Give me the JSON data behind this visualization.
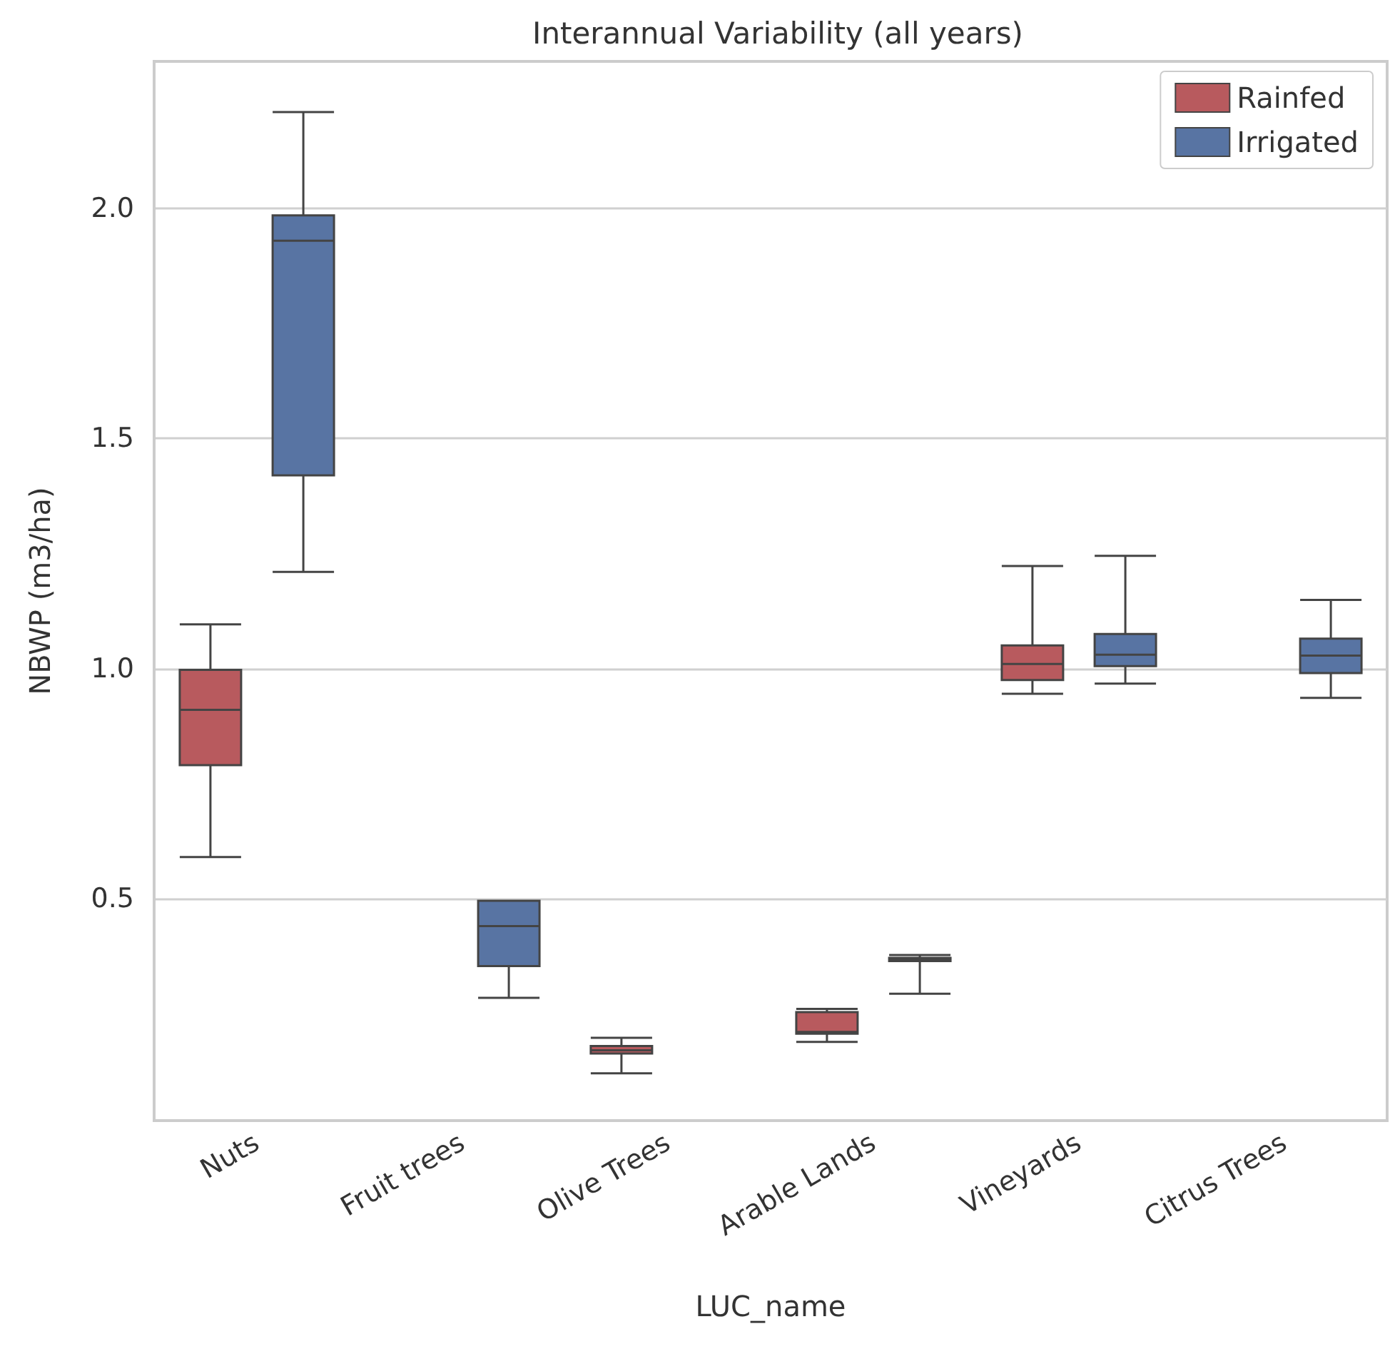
{
  "chart_data": {
    "type": "box",
    "title": "Interannual Variability (all years)",
    "xlabel": "LUC_name",
    "ylabel": "NBWP (m3/ha)",
    "categories": [
      "Nuts",
      "Fruit trees",
      "Olive Trees",
      "Arable Lands",
      "Vineyards",
      "Citrus Trees"
    ],
    "series": [
      {
        "name": "Rainfed",
        "color": "#b85a5e",
        "boxes": [
          {
            "low": 0.59,
            "q1": 0.79,
            "median": 0.91,
            "q3": 0.997,
            "high": 1.096
          },
          null,
          {
            "low": 0.12,
            "q1": 0.163,
            "median": 0.17,
            "q3": 0.179,
            "high": 0.197
          },
          {
            "low": 0.188,
            "q1": 0.206,
            "median": 0.21,
            "q3": 0.253,
            "high": 0.26
          },
          {
            "low": 0.945,
            "q1": 0.975,
            "median": 1.01,
            "q3": 1.05,
            "high": 1.223
          },
          null
        ]
      },
      {
        "name": "Irrigated",
        "color": "#5874a3",
        "boxes": [
          {
            "low": 1.21,
            "q1": 1.42,
            "median": 1.93,
            "q3": 1.985,
            "high": 2.21
          },
          {
            "low": 0.284,
            "q1": 0.353,
            "median": 0.44,
            "q3": 0.495,
            "high": 0.495
          },
          null,
          {
            "low": 0.293,
            "q1": 0.364,
            "median": 0.367,
            "q3": 0.371,
            "high": 0.377
          },
          {
            "low": 0.967,
            "q1": 1.005,
            "median": 1.03,
            "q3": 1.075,
            "high": 1.245
          },
          {
            "low": 0.936,
            "q1": 0.99,
            "median": 1.028,
            "q3": 1.065,
            "high": 1.149
          }
        ]
      }
    ],
    "ylim": [
      0.017,
      2.32
    ],
    "yticks": [
      {
        "value": 0.5,
        "label": "0.5"
      },
      {
        "value": 1.0,
        "label": "1.0"
      },
      {
        "value": 1.5,
        "label": "1.5"
      },
      {
        "value": 2.0,
        "label": "2.0"
      }
    ],
    "grid": "y",
    "legend": "top right"
  }
}
